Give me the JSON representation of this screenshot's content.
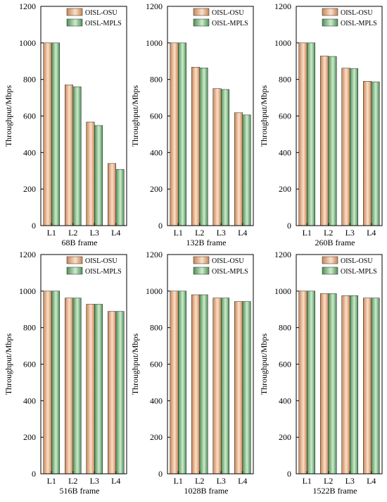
{
  "chart_data": [
    {
      "type": "bar",
      "categories": [
        "L1",
        "L2",
        "L3",
        "L4"
      ],
      "series": [
        {
          "name": "OISL-OSU",
          "values": [
            1000,
            770,
            567,
            340
          ]
        },
        {
          "name": "OISL-MPLS",
          "values": [
            1000,
            760,
            548,
            308
          ]
        }
      ],
      "xlabel": "68B frame",
      "ylabel": "Throughput/Mbps",
      "ylim": [
        0,
        1200
      ],
      "yticks": [
        0,
        200,
        400,
        600,
        800,
        1000,
        1200
      ],
      "legend": "top-right",
      "grid": false
    },
    {
      "type": "bar",
      "categories": [
        "L1",
        "L2",
        "L3",
        "L4"
      ],
      "series": [
        {
          "name": "OISL-OSU",
          "values": [
            1000,
            867,
            750,
            618
          ]
        },
        {
          "name": "OISL-MPLS",
          "values": [
            1000,
            863,
            745,
            606
          ]
        }
      ],
      "xlabel": "132B frame",
      "ylabel": "Throughput/Mbps",
      "ylim": [
        0,
        1200
      ],
      "yticks": [
        0,
        200,
        400,
        600,
        800,
        1000,
        1200
      ],
      "legend": "top-right",
      "grid": false
    },
    {
      "type": "bar",
      "categories": [
        "L1",
        "L2",
        "L3",
        "L4"
      ],
      "series": [
        {
          "name": "OISL-OSU",
          "values": [
            1000,
            928,
            862,
            790
          ]
        },
        {
          "name": "OISL-MPLS",
          "values": [
            1000,
            926,
            860,
            787
          ]
        }
      ],
      "xlabel": "260B frame",
      "ylabel": "Throughput/Mbps",
      "ylim": [
        0,
        1200
      ],
      "yticks": [
        0,
        200,
        400,
        600,
        800,
        1000,
        1200
      ],
      "legend": "top-right",
      "grid": false
    },
    {
      "type": "bar",
      "categories": [
        "L1",
        "L2",
        "L3",
        "L4"
      ],
      "series": [
        {
          "name": "OISL-OSU",
          "values": [
            1000,
            962,
            928,
            889
          ]
        },
        {
          "name": "OISL-MPLS",
          "values": [
            1000,
            962,
            928,
            889
          ]
        }
      ],
      "xlabel": "516B frame",
      "ylabel": "Throughput/Mbps",
      "ylim": [
        0,
        1200
      ],
      "yticks": [
        0,
        200,
        400,
        600,
        800,
        1000,
        1200
      ],
      "legend": "top-right",
      "grid": false
    },
    {
      "type": "bar",
      "categories": [
        "L1",
        "L2",
        "L3",
        "L4"
      ],
      "series": [
        {
          "name": "OISL-OSU",
          "values": [
            1000,
            980,
            962,
            943
          ]
        },
        {
          "name": "OISL-MPLS",
          "values": [
            1000,
            980,
            962,
            943
          ]
        }
      ],
      "xlabel": "1028B frame",
      "ylabel": "Throughput/Mbps",
      "ylim": [
        0,
        1200
      ],
      "yticks": [
        0,
        200,
        400,
        600,
        800,
        1000,
        1200
      ],
      "legend": "top-right",
      "grid": false
    },
    {
      "type": "bar",
      "categories": [
        "L1",
        "L2",
        "L3",
        "L4"
      ],
      "series": [
        {
          "name": "OISL-OSU",
          "values": [
            1000,
            986,
            975,
            962
          ]
        },
        {
          "name": "OISL-MPLS",
          "values": [
            1000,
            986,
            975,
            962
          ]
        }
      ],
      "xlabel": "1522B frame",
      "ylabel": "Throughput/Mbps",
      "ylim": [
        0,
        1200
      ],
      "yticks": [
        0,
        200,
        400,
        600,
        800,
        1000,
        1200
      ],
      "legend": "top-right",
      "grid": false
    }
  ],
  "colors": {
    "osu_light": "#fbe0c8",
    "osu_dark": "#c98558",
    "mpls_light": "#cdeccb",
    "mpls_dark": "#4f8f59"
  }
}
